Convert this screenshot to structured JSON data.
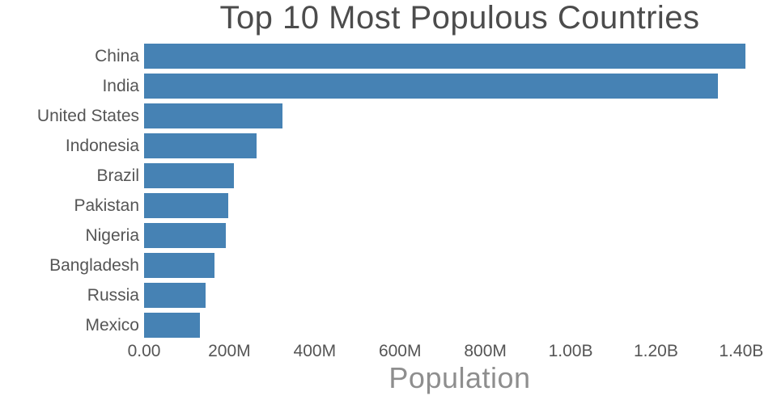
{
  "chart_data": {
    "type": "bar",
    "orientation": "horizontal",
    "title": "Top 10 Most Populous Countries",
    "xlabel": "Population",
    "ylabel": "",
    "categories": [
      "China",
      "India",
      "United States",
      "Indonesia",
      "Brazil",
      "Pakistan",
      "Nigeria",
      "Bangladesh",
      "Russia",
      "Mexico"
    ],
    "values": [
      1410000000,
      1345000000,
      325000000,
      264000000,
      210000000,
      198000000,
      192000000,
      165000000,
      144000000,
      130000000
    ],
    "xlim": [
      0,
      1480000000
    ],
    "xticks": [
      {
        "value": 0,
        "label": "0.00"
      },
      {
        "value": 200000000,
        "label": "200M"
      },
      {
        "value": 400000000,
        "label": "400M"
      },
      {
        "value": 600000000,
        "label": "600M"
      },
      {
        "value": 800000000,
        "label": "800M"
      },
      {
        "value": 1000000000,
        "label": "1.00B"
      },
      {
        "value": 1200000000,
        "label": "1.20B"
      },
      {
        "value": 1400000000,
        "label": "1.40B"
      }
    ],
    "bar_color": "#4682B4",
    "grid": false,
    "legend": false
  }
}
